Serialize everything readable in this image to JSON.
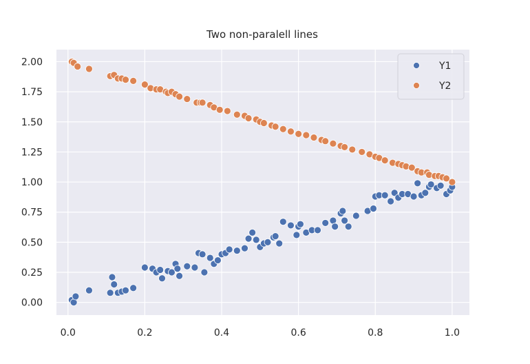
{
  "chart_data": {
    "type": "scatter",
    "title": "Two non-paralell lines",
    "xlabel": "",
    "ylabel": "",
    "xlim": [
      -0.03,
      1.045
    ],
    "ylim": [
      -0.105,
      2.1
    ],
    "xticks": [
      0.0,
      0.2,
      0.4,
      0.6,
      0.8,
      1.0
    ],
    "xtick_labels": [
      "0.0",
      "0.2",
      "0.4",
      "0.6",
      "0.8",
      "1.0"
    ],
    "yticks": [
      0.0,
      0.25,
      0.5,
      0.75,
      1.0,
      1.25,
      1.5,
      1.75,
      2.0
    ],
    "ytick_labels": [
      "0.00",
      "0.25",
      "0.50",
      "0.75",
      "1.00",
      "1.25",
      "1.50",
      "1.75",
      "2.00"
    ],
    "grid": true,
    "legend_position": "top-right",
    "series": [
      {
        "name": "Y1",
        "color": "#4c72b0",
        "points": [
          [
            0.01,
            0.02
          ],
          [
            0.015,
            0.0
          ],
          [
            0.02,
            0.05
          ],
          [
            0.055,
            0.1
          ],
          [
            0.11,
            0.08
          ],
          [
            0.115,
            0.21
          ],
          [
            0.12,
            0.15
          ],
          [
            0.13,
            0.08
          ],
          [
            0.14,
            0.09
          ],
          [
            0.15,
            0.1
          ],
          [
            0.17,
            0.12
          ],
          [
            0.2,
            0.29
          ],
          [
            0.22,
            0.28
          ],
          [
            0.23,
            0.25
          ],
          [
            0.24,
            0.27
          ],
          [
            0.245,
            0.2
          ],
          [
            0.26,
            0.26
          ],
          [
            0.27,
            0.25
          ],
          [
            0.28,
            0.32
          ],
          [
            0.285,
            0.28
          ],
          [
            0.29,
            0.22
          ],
          [
            0.31,
            0.3
          ],
          [
            0.33,
            0.29
          ],
          [
            0.34,
            0.41
          ],
          [
            0.35,
            0.4
          ],
          [
            0.355,
            0.25
          ],
          [
            0.37,
            0.37
          ],
          [
            0.38,
            0.32
          ],
          [
            0.39,
            0.35
          ],
          [
            0.4,
            0.4
          ],
          [
            0.41,
            0.41
          ],
          [
            0.42,
            0.44
          ],
          [
            0.44,
            0.43
          ],
          [
            0.46,
            0.45
          ],
          [
            0.47,
            0.53
          ],
          [
            0.48,
            0.58
          ],
          [
            0.49,
            0.52
          ],
          [
            0.5,
            0.46
          ],
          [
            0.51,
            0.49
          ],
          [
            0.52,
            0.5
          ],
          [
            0.535,
            0.54
          ],
          [
            0.54,
            0.55
          ],
          [
            0.55,
            0.49
          ],
          [
            0.56,
            0.67
          ],
          [
            0.58,
            0.64
          ],
          [
            0.595,
            0.56
          ],
          [
            0.6,
            0.63
          ],
          [
            0.605,
            0.65
          ],
          [
            0.62,
            0.58
          ],
          [
            0.635,
            0.6
          ],
          [
            0.65,
            0.6
          ],
          [
            0.67,
            0.66
          ],
          [
            0.69,
            0.68
          ],
          [
            0.695,
            0.63
          ],
          [
            0.71,
            0.74
          ],
          [
            0.715,
            0.76
          ],
          [
            0.72,
            0.68
          ],
          [
            0.73,
            0.63
          ],
          [
            0.75,
            0.72
          ],
          [
            0.78,
            0.76
          ],
          [
            0.795,
            0.78
          ],
          [
            0.8,
            0.88
          ],
          [
            0.81,
            0.89
          ],
          [
            0.825,
            0.89
          ],
          [
            0.84,
            0.84
          ],
          [
            0.85,
            0.91
          ],
          [
            0.86,
            0.87
          ],
          [
            0.87,
            0.9
          ],
          [
            0.885,
            0.9
          ],
          [
            0.9,
            0.88
          ],
          [
            0.91,
            0.99
          ],
          [
            0.92,
            0.89
          ],
          [
            0.93,
            0.91
          ],
          [
            0.94,
            0.96
          ],
          [
            0.945,
            0.98
          ],
          [
            0.96,
            0.95
          ],
          [
            0.97,
            0.97
          ],
          [
            0.985,
            0.9
          ],
          [
            0.995,
            0.93
          ],
          [
            1.0,
            0.96
          ]
        ]
      },
      {
        "name": "Y2",
        "color": "#dd8452",
        "points": [
          [
            0.01,
            2.0
          ],
          [
            0.015,
            1.99
          ],
          [
            0.025,
            1.96
          ],
          [
            0.055,
            1.94
          ],
          [
            0.11,
            1.88
          ],
          [
            0.12,
            1.89
          ],
          [
            0.13,
            1.86
          ],
          [
            0.14,
            1.86
          ],
          [
            0.15,
            1.85
          ],
          [
            0.17,
            1.84
          ],
          [
            0.2,
            1.81
          ],
          [
            0.215,
            1.78
          ],
          [
            0.23,
            1.77
          ],
          [
            0.24,
            1.77
          ],
          [
            0.255,
            1.75
          ],
          [
            0.26,
            1.74
          ],
          [
            0.27,
            1.75
          ],
          [
            0.28,
            1.73
          ],
          [
            0.29,
            1.71
          ],
          [
            0.31,
            1.69
          ],
          [
            0.335,
            1.66
          ],
          [
            0.345,
            1.66
          ],
          [
            0.35,
            1.66
          ],
          [
            0.37,
            1.64
          ],
          [
            0.38,
            1.62
          ],
          [
            0.395,
            1.6
          ],
          [
            0.415,
            1.59
          ],
          [
            0.44,
            1.56
          ],
          [
            0.46,
            1.55
          ],
          [
            0.47,
            1.53
          ],
          [
            0.49,
            1.52
          ],
          [
            0.5,
            1.5
          ],
          [
            0.51,
            1.49
          ],
          [
            0.53,
            1.47
          ],
          [
            0.54,
            1.46
          ],
          [
            0.56,
            1.44
          ],
          [
            0.58,
            1.42
          ],
          [
            0.6,
            1.4
          ],
          [
            0.62,
            1.39
          ],
          [
            0.64,
            1.37
          ],
          [
            0.66,
            1.35
          ],
          [
            0.67,
            1.34
          ],
          [
            0.69,
            1.32
          ],
          [
            0.71,
            1.3
          ],
          [
            0.72,
            1.29
          ],
          [
            0.74,
            1.27
          ],
          [
            0.765,
            1.25
          ],
          [
            0.785,
            1.23
          ],
          [
            0.8,
            1.21
          ],
          [
            0.81,
            1.2
          ],
          [
            0.825,
            1.18
          ],
          [
            0.845,
            1.16
          ],
          [
            0.86,
            1.15
          ],
          [
            0.87,
            1.14
          ],
          [
            0.88,
            1.13
          ],
          [
            0.895,
            1.12
          ],
          [
            0.91,
            1.09
          ],
          [
            0.92,
            1.08
          ],
          [
            0.935,
            1.08
          ],
          [
            0.94,
            1.06
          ],
          [
            0.955,
            1.05
          ],
          [
            0.965,
            1.05
          ],
          [
            0.975,
            1.04
          ],
          [
            0.985,
            1.03
          ],
          [
            1.0,
            1.0
          ]
        ]
      }
    ]
  }
}
